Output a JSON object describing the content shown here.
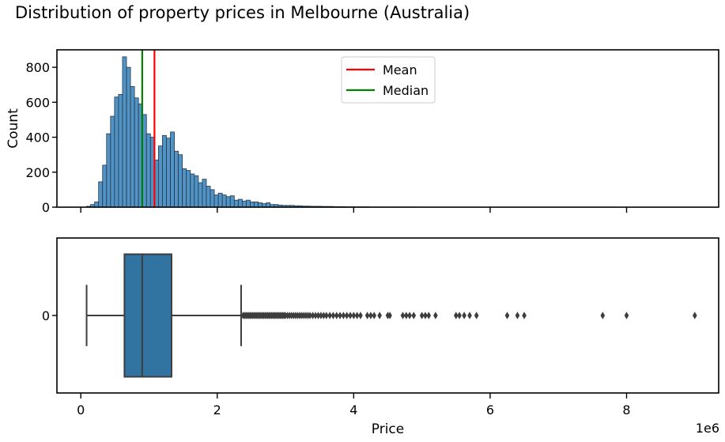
{
  "chart_data": {
    "title": "Distribution of property prices in Melbourne (Australia)",
    "scale_note": "1e6",
    "histogram": {
      "type": "bar",
      "ylabel": "Count",
      "ylim": [
        0,
        900
      ],
      "xlim": [
        -0.35,
        9.35
      ],
      "yticks": [
        "0",
        "200",
        "400",
        "600",
        "800"
      ],
      "bin_width": 0.0585,
      "bin_start": 0.085,
      "color": "#3a84bd",
      "values": [
        5,
        15,
        30,
        145,
        240,
        420,
        520,
        630,
        645,
        860,
        800,
        690,
        625,
        590,
        530,
        420,
        400,
        270,
        350,
        410,
        395,
        430,
        320,
        300,
        220,
        210,
        190,
        180,
        140,
        160,
        120,
        100,
        70,
        80,
        70,
        60,
        65,
        40,
        45,
        35,
        40,
        30,
        30,
        25,
        20,
        25,
        15,
        15,
        12,
        10,
        10,
        10,
        8,
        8,
        6,
        6,
        5,
        5,
        5,
        4,
        4,
        4,
        3,
        3,
        3,
        2,
        2,
        2,
        2,
        2,
        2,
        1,
        1,
        1,
        1,
        1,
        1,
        1,
        1,
        1,
        1,
        1,
        1,
        0,
        0,
        0,
        0,
        0,
        0,
        0,
        0,
        0,
        0,
        0,
        0,
        0,
        0,
        0,
        0,
        0,
        0,
        0,
        0,
        0,
        0,
        0,
        0,
        0,
        0,
        0,
        0,
        0,
        0,
        0,
        0,
        0,
        0,
        0,
        0,
        0,
        0,
        0,
        0,
        0,
        0,
        0,
        0,
        0,
        0,
        0,
        0,
        0,
        0,
        0,
        0,
        0,
        0,
        0,
        0,
        0,
        0,
        0,
        0,
        0,
        0,
        0,
        0,
        0,
        0,
        0
      ],
      "mean": 1.08,
      "median": 0.9,
      "legend": [
        {
          "label": "Mean",
          "color": "#ff0000"
        },
        {
          "label": "Median",
          "color": "#008000"
        }
      ],
      "legend_position": "top-center"
    },
    "boxplot": {
      "type": "box",
      "xlabel": "Price",
      "xlim": [
        -0.35,
        9.35
      ],
      "xticks": [
        "0",
        "2",
        "4",
        "6",
        "8"
      ],
      "ytick": "0",
      "whisker_low": 0.085,
      "q1": 0.64,
      "median": 0.9,
      "q3": 1.33,
      "whisker_high": 2.35,
      "color": "#3274a1",
      "outliers": [
        2.38,
        2.4,
        2.42,
        2.44,
        2.46,
        2.48,
        2.5,
        2.52,
        2.54,
        2.56,
        2.58,
        2.6,
        2.62,
        2.64,
        2.66,
        2.68,
        2.7,
        2.72,
        2.74,
        2.76,
        2.78,
        2.8,
        2.82,
        2.84,
        2.86,
        2.88,
        2.9,
        2.92,
        2.94,
        2.96,
        2.98,
        3.0,
        3.03,
        3.06,
        3.09,
        3.12,
        3.15,
        3.18,
        3.21,
        3.24,
        3.27,
        3.3,
        3.33,
        3.36,
        3.4,
        3.44,
        3.48,
        3.52,
        3.56,
        3.6,
        3.65,
        3.7,
        3.75,
        3.8,
        3.85,
        3.9,
        3.95,
        4.0,
        4.05,
        4.1,
        4.2,
        4.25,
        4.3,
        4.38,
        4.5,
        4.53,
        4.72,
        4.77,
        4.82,
        4.88,
        5.0,
        5.05,
        5.1,
        5.2,
        5.5,
        5.55,
        5.62,
        5.7,
        5.8,
        6.25,
        6.4,
        6.5,
        7.65,
        8.0,
        9.0
      ]
    }
  }
}
